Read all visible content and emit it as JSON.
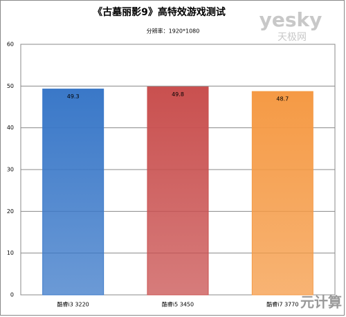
{
  "chart_data": {
    "type": "bar",
    "title": "《古墓丽影9》高特效游戏测试",
    "subtitle": "分辨率：1920*1080",
    "categories": [
      "酷睿i3 3220",
      "酷睿i5 3450",
      "酷睿i7 3770"
    ],
    "values": [
      49.3,
      49.8,
      48.7
    ],
    "colors": [
      "#3a78c8",
      "#c9504f",
      "#f59a45"
    ],
    "ylim": [
      0,
      60
    ],
    "yticks": [
      0,
      10,
      20,
      30,
      40,
      50,
      60
    ],
    "grid": true,
    "watermarks": [
      "yesky",
      "天极网",
      "元计算"
    ]
  }
}
